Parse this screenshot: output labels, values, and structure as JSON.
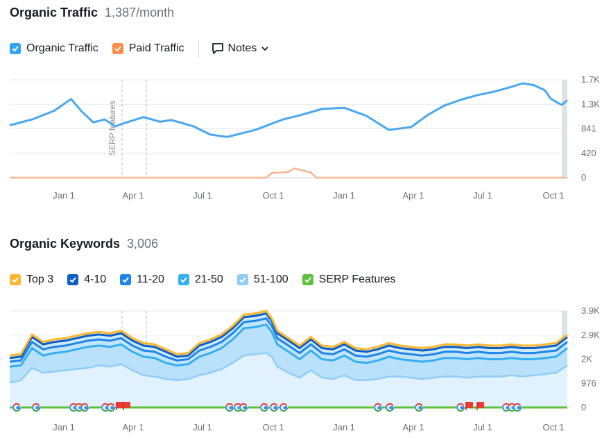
{
  "traffic": {
    "title": "Organic Traffic",
    "subtitle": "1,387/month",
    "legend": [
      {
        "label": "Organic Traffic",
        "color": "#2fa4f5"
      },
      {
        "label": "Paid Traffic",
        "color": "#ff8c42"
      }
    ],
    "notes_label": "Notes",
    "annotation": "SERP features"
  },
  "keywords": {
    "title": "Organic Keywords",
    "subtitle": "3,006",
    "legend": [
      {
        "label": "Top 3",
        "color": "#ffb62e"
      },
      {
        "label": "4-10",
        "color": "#0b5fc4"
      },
      {
        "label": "11-20",
        "color": "#1f84e8"
      },
      {
        "label": "21-50",
        "color": "#34aef2"
      },
      {
        "label": "51-100",
        "color": "#8fcdf8"
      },
      {
        "label": "SERP Features",
        "color": "#5cc23b"
      }
    ]
  },
  "chart_data": [
    {
      "type": "line",
      "title": "Organic Traffic",
      "x_tick_labels": [
        "Jan 1",
        "Apr 1",
        "Jul 1",
        "Oct 1",
        "Jan 1",
        "Apr 1",
        "Jul 1",
        "Oct 1"
      ],
      "y_tick_labels": [
        "1.7K",
        "1.3K",
        "841",
        "420",
        "0"
      ],
      "ylim": [
        0,
        1680
      ],
      "grid": true,
      "series": [
        {
          "name": "Organic Traffic",
          "color": "#47a7f0",
          "x": [
            0,
            4,
            8,
            11,
            13,
            15,
            17,
            19,
            20,
            24,
            27,
            29,
            33,
            36,
            39,
            44,
            49,
            52,
            56,
            60,
            64,
            66,
            68,
            72,
            75,
            78,
            81,
            84,
            87,
            90,
            92,
            94,
            96,
            97,
            98,
            99,
            100
          ],
          "values": [
            900,
            1000,
            1150,
            1350,
            1130,
            950,
            1000,
            880,
            920,
            1040,
            960,
            990,
            880,
            740,
            700,
            820,
            1000,
            1070,
            1180,
            1200,
            1060,
            940,
            820,
            870,
            1080,
            1240,
            1340,
            1420,
            1480,
            1560,
            1620,
            1590,
            1500,
            1360,
            1300,
            1250,
            1330
          ]
        },
        {
          "name": "Paid Traffic",
          "color": "#f8b68f",
          "x": [
            0,
            46,
            47,
            50,
            51,
            54,
            55,
            100
          ],
          "values": [
            0,
            0,
            80,
            100,
            160,
            90,
            0,
            0
          ]
        }
      ]
    },
    {
      "type": "area",
      "title": "Organic Keywords",
      "x_tick_labels": [
        "Jan 1",
        "Apr 1",
        "Jul 1",
        "Oct 1",
        "Jan 1",
        "Apr 1",
        "Jul 1",
        "Oct 1"
      ],
      "y_tick_labels": [
        "3.9K",
        "2.9K",
        "2K",
        "976",
        "0"
      ],
      "ylim": [
        0,
        3900
      ],
      "grid": true,
      "x": [
        0,
        2,
        4,
        6,
        8,
        10,
        12,
        14,
        16,
        18,
        20,
        22,
        24,
        26,
        28,
        30,
        32,
        34,
        36,
        38,
        40,
        42,
        44,
        46,
        47,
        48,
        50,
        52,
        54,
        56,
        58,
        60,
        62,
        64,
        66,
        68,
        70,
        72,
        74,
        76,
        78,
        80,
        82,
        84,
        86,
        88,
        90,
        92,
        94,
        96,
        98,
        100
      ],
      "series": [
        {
          "name": "Top 3",
          "color": "#ffb62e",
          "values": [
            2100,
            2150,
            2950,
            2650,
            2750,
            2800,
            2900,
            3000,
            3050,
            3000,
            3100,
            2800,
            2600,
            2550,
            2350,
            2150,
            2200,
            2600,
            2750,
            2950,
            3300,
            3750,
            3800,
            3900,
            3600,
            3100,
            2800,
            2500,
            2850,
            2500,
            2450,
            2650,
            2400,
            2350,
            2450,
            2600,
            2500,
            2450,
            2400,
            2450,
            2550,
            2550,
            2500,
            2550,
            2500,
            2500,
            2550,
            2500,
            2500,
            2550,
            2600,
            2950
          ]
        },
        {
          "name": "4-10",
          "color": "#0b5fc4",
          "values": [
            2000,
            2050,
            2850,
            2550,
            2650,
            2700,
            2800,
            2900,
            2950,
            2900,
            3000,
            2700,
            2500,
            2450,
            2250,
            2050,
            2100,
            2500,
            2650,
            2850,
            3200,
            3650,
            3700,
            3800,
            3500,
            3000,
            2700,
            2400,
            2750,
            2400,
            2350,
            2550,
            2300,
            2250,
            2350,
            2500,
            2400,
            2350,
            2300,
            2350,
            2450,
            2450,
            2400,
            2450,
            2400,
            2400,
            2450,
            2400,
            2400,
            2450,
            2500,
            2850
          ]
        },
        {
          "name": "11-20",
          "color": "#1f84e8",
          "values": [
            1850,
            1900,
            2650,
            2350,
            2450,
            2500,
            2600,
            2700,
            2750,
            2700,
            2800,
            2500,
            2300,
            2250,
            2050,
            1900,
            1950,
            2300,
            2450,
            2650,
            3000,
            3450,
            3500,
            3600,
            3300,
            2800,
            2500,
            2200,
            2550,
            2200,
            2150,
            2350,
            2100,
            2050,
            2150,
            2300,
            2200,
            2150,
            2100,
            2150,
            2250,
            2250,
            2200,
            2250,
            2200,
            2200,
            2250,
            2200,
            2200,
            2250,
            2300,
            2650
          ]
        },
        {
          "name": "21-50",
          "color": "#34aef2",
          "values": [
            1650,
            1700,
            2400,
            2100,
            2200,
            2250,
            2350,
            2450,
            2500,
            2450,
            2550,
            2250,
            2050,
            2000,
            1800,
            1700,
            1750,
            2050,
            2200,
            2400,
            2750,
            3200,
            3250,
            3350,
            3050,
            2550,
            2250,
            1950,
            2300,
            1950,
            1900,
            2100,
            1850,
            1800,
            1900,
            2050,
            1950,
            1900,
            1850,
            1900,
            2000,
            2000,
            1950,
            2000,
            1950,
            1950,
            2000,
            1950,
            1950,
            2000,
            2050,
            2400
          ]
        },
        {
          "name": "51-100",
          "color": "#8fcdf8",
          "values": [
            1000,
            1100,
            1600,
            1400,
            1450,
            1500,
            1550,
            1600,
            1700,
            1650,
            1750,
            1500,
            1300,
            1250,
            1150,
            1100,
            1150,
            1300,
            1400,
            1550,
            1800,
            2100,
            2150,
            2200,
            2050,
            1650,
            1400,
            1200,
            1500,
            1200,
            1150,
            1300,
            1100,
            1100,
            1150,
            1250,
            1250,
            1200,
            1150,
            1200,
            1250,
            1250,
            1200,
            1250,
            1250,
            1250,
            1300,
            1250,
            1300,
            1350,
            1400,
            1700
          ]
        },
        {
          "name": "SERP Features",
          "color": "#5cc23b",
          "values": [
            0,
            0,
            0,
            0,
            0,
            0,
            0,
            0,
            0,
            0,
            0,
            0,
            0,
            0,
            0,
            0,
            0,
            0,
            0,
            0,
            0,
            0,
            0,
            0,
            0,
            0,
            0,
            0,
            0,
            0,
            0,
            0,
            0,
            0,
            0,
            0,
            0,
            0,
            0,
            0,
            0,
            0,
            0,
            0,
            0,
            0,
            0,
            0,
            0,
            0,
            0,
            0
          ]
        }
      ]
    }
  ]
}
